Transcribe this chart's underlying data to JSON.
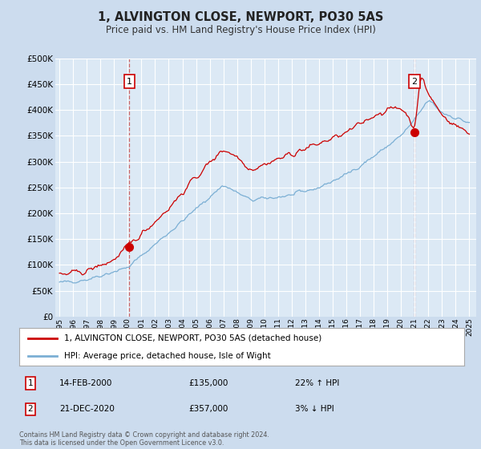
{
  "title": "1, ALVINGTON CLOSE, NEWPORT, PO30 5AS",
  "subtitle": "Price paid vs. HM Land Registry's House Price Index (HPI)",
  "background_color": "#ccdcee",
  "plot_bg_color": "#dce9f5",
  "grid_color": "#ffffff",
  "sale1": {
    "date_num": 2000.12,
    "price": 135000,
    "label": "1",
    "hpi_diff": "22% ↑ HPI",
    "date_str": "14-FEB-2000"
  },
  "sale2": {
    "date_num": 2020.97,
    "price": 357000,
    "label": "2",
    "hpi_diff": "3% ↓ HPI",
    "date_str": "21-DEC-2020"
  },
  "red_line_color": "#cc0000",
  "blue_line_color": "#7bafd4",
  "sale_dot_color": "#cc0000",
  "vline_color": "#cc6666",
  "legend_red_label": "1, ALVINGTON CLOSE, NEWPORT, PO30 5AS (detached house)",
  "legend_blue_label": "HPI: Average price, detached house, Isle of Wight",
  "footer": "Contains HM Land Registry data © Crown copyright and database right 2024.\nThis data is licensed under the Open Government Licence v3.0.",
  "ylim": [
    0,
    500000
  ],
  "yticks": [
    0,
    50000,
    100000,
    150000,
    200000,
    250000,
    300000,
    350000,
    400000,
    450000,
    500000
  ],
  "xmin": 1994.7,
  "xmax": 2025.5
}
